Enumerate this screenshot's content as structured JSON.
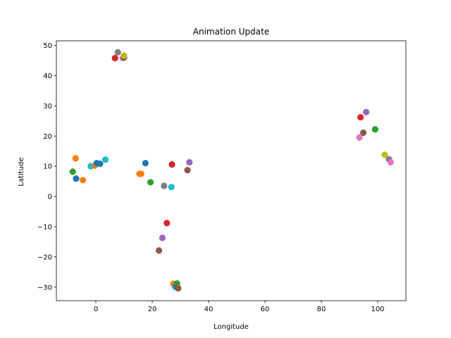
{
  "chart_data": {
    "type": "scatter",
    "title": "Animation Update",
    "xlabel": "Longitude",
    "ylabel": "Latitude",
    "xlim": [
      -14,
      110
    ],
    "ylim": [
      -34.5,
      51.5
    ],
    "xticks": [
      0,
      20,
      40,
      60,
      80,
      100
    ],
    "yticks": [
      -30,
      -20,
      -10,
      0,
      10,
      20,
      30,
      40,
      50
    ],
    "xtick_labels": [
      "0",
      "20",
      "40",
      "60",
      "80",
      "100"
    ],
    "ytick_labels": [
      "−30",
      "−20",
      "−10",
      "0",
      "10",
      "20",
      "30",
      "40",
      "50"
    ],
    "grid": false,
    "legend": "none",
    "points": [
      {
        "x": 6.8,
        "y": 45.8,
        "color": "#d62728"
      },
      {
        "x": 7.8,
        "y": 47.7,
        "color": "#7f7f7f"
      },
      {
        "x": 9.5,
        "y": 45.8,
        "color": "#e377c2"
      },
      {
        "x": 10.0,
        "y": 46.0,
        "color": "#8c564b"
      },
      {
        "x": 10.0,
        "y": 46.6,
        "color": "#bcbd22"
      },
      {
        "x": -7.2,
        "y": 12.6,
        "color": "#ff7f0e"
      },
      {
        "x": -8.2,
        "y": 8.2,
        "color": "#2ca02c"
      },
      {
        "x": -7.0,
        "y": 5.9,
        "color": "#1f77b4"
      },
      {
        "x": -4.6,
        "y": 5.4,
        "color": "#ff7f0e"
      },
      {
        "x": -1.8,
        "y": 10.0,
        "color": "#17becf"
      },
      {
        "x": -0.4,
        "y": 10.2,
        "color": "#ff7f0e"
      },
      {
        "x": 0.3,
        "y": 11.0,
        "color": "#1f77b4"
      },
      {
        "x": 1.5,
        "y": 10.8,
        "color": "#1f77b4"
      },
      {
        "x": 3.4,
        "y": 12.2,
        "color": "#17becf"
      },
      {
        "x": 15.5,
        "y": 7.5,
        "color": "#ff7f0e"
      },
      {
        "x": 16.1,
        "y": 7.5,
        "color": "#ff7f0e"
      },
      {
        "x": 17.6,
        "y": 11.0,
        "color": "#1f77b4"
      },
      {
        "x": 19.4,
        "y": 4.7,
        "color": "#2ca02c"
      },
      {
        "x": 24.2,
        "y": 3.5,
        "color": "#7f7f7f"
      },
      {
        "x": 26.8,
        "y": 3.1,
        "color": "#17becf"
      },
      {
        "x": 27.0,
        "y": 10.6,
        "color": "#d62728"
      },
      {
        "x": 32.5,
        "y": 8.7,
        "color": "#8c564b"
      },
      {
        "x": 33.2,
        "y": 11.3,
        "color": "#9467bd"
      },
      {
        "x": 25.2,
        "y": -8.8,
        "color": "#d62728"
      },
      {
        "x": 23.6,
        "y": -13.7,
        "color": "#9467bd"
      },
      {
        "x": 22.4,
        "y": -17.9,
        "color": "#8c564b"
      },
      {
        "x": 27.5,
        "y": -28.9,
        "color": "#ff7f0e"
      },
      {
        "x": 28.2,
        "y": -30.0,
        "color": "#17becf"
      },
      {
        "x": 28.5,
        "y": -29.6,
        "color": "#1f77b4"
      },
      {
        "x": 28.8,
        "y": -28.8,
        "color": "#2ca02c"
      },
      {
        "x": 29.2,
        "y": -30.4,
        "color": "#8c564b"
      },
      {
        "x": 93.9,
        "y": 26.2,
        "color": "#d62728"
      },
      {
        "x": 95.9,
        "y": 27.9,
        "color": "#9467bd"
      },
      {
        "x": 99.1,
        "y": 22.2,
        "color": "#2ca02c"
      },
      {
        "x": 94.9,
        "y": 21.1,
        "color": "#8c564b"
      },
      {
        "x": 93.5,
        "y": 19.5,
        "color": "#e377c2"
      },
      {
        "x": 102.5,
        "y": 13.8,
        "color": "#bcbd22"
      },
      {
        "x": 104.0,
        "y": 12.3,
        "color": "#7f7f7f"
      },
      {
        "x": 104.6,
        "y": 11.3,
        "color": "#e377c2"
      }
    ]
  }
}
